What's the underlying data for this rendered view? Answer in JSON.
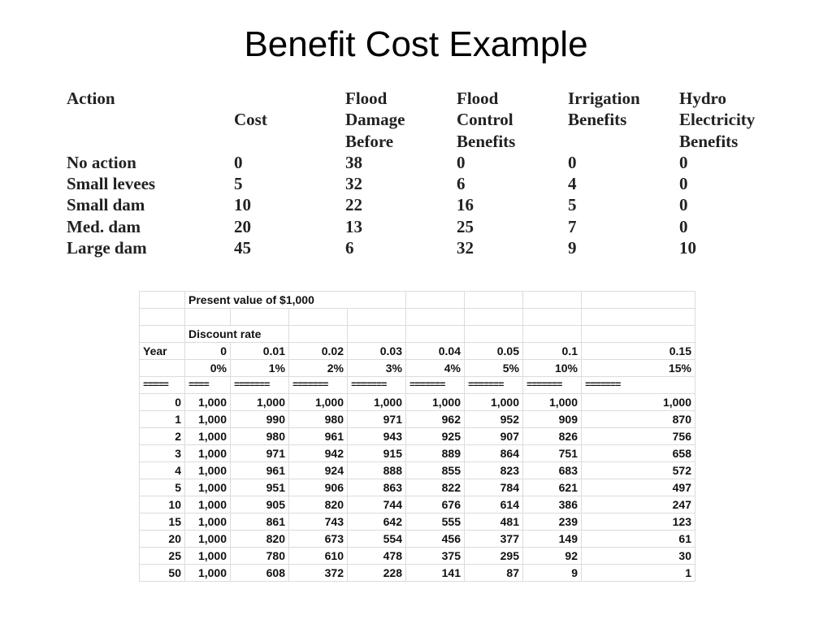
{
  "title": "Benefit Cost Example",
  "benefit_table": {
    "header_rows": [
      [
        "Action",
        "",
        "Flood",
        "Flood",
        "Irrigation",
        "Hydro"
      ],
      [
        "",
        "Cost",
        "Damage",
        "Control",
        "Benefits",
        "Electricity"
      ],
      [
        "",
        "",
        "Before",
        "Benefits",
        "",
        "Benefits"
      ]
    ],
    "rows": [
      [
        "No action",
        "0",
        "38",
        "0",
        "0",
        "0"
      ],
      [
        "Small levees",
        "5",
        "32",
        "6",
        "4",
        "0"
      ],
      [
        "Small dam",
        "10",
        "22",
        "16",
        "5",
        "0"
      ],
      [
        "Med. dam",
        "20",
        "13",
        "25",
        "7",
        "0"
      ],
      [
        "Large dam",
        "45",
        "6",
        "32",
        "9",
        "10"
      ]
    ]
  },
  "present_value_table": {
    "caption": "Present value of $1,000",
    "discount_label": "Discount rate",
    "year_label": "Year",
    "rates": [
      "0",
      "0.01",
      "0.02",
      "0.03",
      "0.04",
      "0.05",
      "0.1",
      "0.15"
    ],
    "percents": [
      "0%",
      "1%",
      "2%",
      "3%",
      "4%",
      "5%",
      "10%",
      "15%"
    ],
    "separators": [
      "=====",
      "====",
      "=======",
      "=======",
      "=======",
      "=======",
      "=======",
      "=======",
      "======="
    ],
    "rows": [
      {
        "year": "0",
        "values": [
          "1,000",
          "1,000",
          "1,000",
          "1,000",
          "1,000",
          "1,000",
          "1,000",
          "1,000"
        ]
      },
      {
        "year": "1",
        "values": [
          "1,000",
          "990",
          "980",
          "971",
          "962",
          "952",
          "909",
          "870"
        ]
      },
      {
        "year": "2",
        "values": [
          "1,000",
          "980",
          "961",
          "943",
          "925",
          "907",
          "826",
          "756"
        ]
      },
      {
        "year": "3",
        "values": [
          "1,000",
          "971",
          "942",
          "915",
          "889",
          "864",
          "751",
          "658"
        ]
      },
      {
        "year": "4",
        "values": [
          "1,000",
          "961",
          "924",
          "888",
          "855",
          "823",
          "683",
          "572"
        ]
      },
      {
        "year": "5",
        "values": [
          "1,000",
          "951",
          "906",
          "863",
          "822",
          "784",
          "621",
          "497"
        ]
      },
      {
        "year": "10",
        "values": [
          "1,000",
          "905",
          "820",
          "744",
          "676",
          "614",
          "386",
          "247"
        ]
      },
      {
        "year": "15",
        "values": [
          "1,000",
          "861",
          "743",
          "642",
          "555",
          "481",
          "239",
          "123"
        ]
      },
      {
        "year": "20",
        "values": [
          "1,000",
          "820",
          "673",
          "554",
          "456",
          "377",
          "149",
          "61"
        ]
      },
      {
        "year": "25",
        "values": [
          "1,000",
          "780",
          "610",
          "478",
          "375",
          "295",
          "92",
          "30"
        ]
      },
      {
        "year": "50",
        "values": [
          "1,000",
          "608",
          "372",
          "228",
          "141",
          "87",
          "9",
          "1"
        ]
      }
    ]
  }
}
